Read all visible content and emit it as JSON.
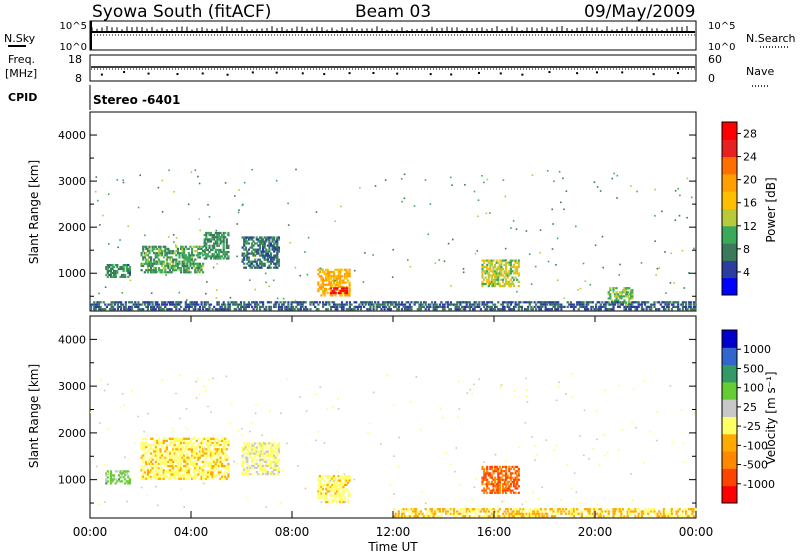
{
  "header": {
    "station": "Syowa South (fitACF)",
    "beam": "Beam 03",
    "date": "09/May/2009"
  },
  "top_panels": {
    "nsky_label": "N.Sky",
    "nsearch_label": "N.Search",
    "freq_label": "Freq.",
    "freq_unit": "[MHz]",
    "nave_label": "Nave",
    "cpid_label": "CPID",
    "cpid_value": "Stereo -6401",
    "noise_left_ticks": [
      "10^5",
      "10^0"
    ],
    "noise_right_ticks": [
      "10^5",
      "10^0"
    ],
    "freq_ticks": [
      "18",
      "8"
    ],
    "nave_ticks": [
      "60",
      "0"
    ]
  },
  "colors": {
    "power_scale": [
      "#0000ff",
      "#2b3ea0",
      "#3a7a5a",
      "#3aaa5a",
      "#b8c93a",
      "#ffbf00",
      "#ff9f00",
      "#ff6f00",
      "#e82020",
      "#ff0000"
    ],
    "velocity_scale": [
      "#ff0000",
      "#ff4400",
      "#ff8800",
      "#ffaa00",
      "#ffff66",
      "#c8c8c8",
      "#66cc33",
      "#339966",
      "#3366cc",
      "#0000cc"
    ],
    "ground_scatter": "#808080"
  },
  "chart_data": [
    {
      "type": "heatmap",
      "panel": "power",
      "ylabel": "Slant Range [km]",
      "ylim": [
        180,
        4500
      ],
      "yticks": [
        "1000",
        "2000",
        "3000",
        "4000"
      ],
      "xlim": [
        "00:00",
        "24:00"
      ],
      "colorbar_label": "Power [dB]",
      "colorbar_ticks": [
        "4",
        "8",
        "12",
        "16",
        "20",
        "24",
        "28"
      ],
      "clim": [
        0,
        30
      ],
      "scatter_regions": [
        {
          "t_start": 0.6,
          "t_end": 1.6,
          "r_min": 900,
          "r_max": 1200,
          "value": 8
        },
        {
          "t_start": 2.0,
          "t_end": 4.5,
          "r_min": 1000,
          "r_max": 1600,
          "value": 10
        },
        {
          "t_start": 4.5,
          "t_end": 5.5,
          "r_min": 1300,
          "r_max": 1900,
          "value": 9
        },
        {
          "t_start": 6.0,
          "t_end": 7.5,
          "r_min": 1100,
          "r_max": 1800,
          "value": 7
        },
        {
          "t_start": 9.0,
          "t_end": 10.3,
          "r_min": 500,
          "r_max": 1100,
          "value": 18
        },
        {
          "t_start": 9.5,
          "t_end": 10.2,
          "r_min": 550,
          "r_max": 700,
          "value": 28
        },
        {
          "t_start": 15.5,
          "t_end": 17.0,
          "r_min": 700,
          "r_max": 1300,
          "value": 14
        },
        {
          "t_start": 20.5,
          "t_end": 21.5,
          "r_min": 300,
          "r_max": 700,
          "value": 12
        },
        {
          "t_start": 0.0,
          "t_end": 24.0,
          "r_min": 200,
          "r_max": 400,
          "value": 6
        }
      ]
    },
    {
      "type": "heatmap",
      "panel": "velocity",
      "xlabel": "Time UT",
      "ylabel": "Slant Range [km]",
      "ylim": [
        180,
        4500
      ],
      "yticks": [
        "1000",
        "2000",
        "3000",
        "4000"
      ],
      "xticks": [
        "00:00",
        "04:00",
        "08:00",
        "12:00",
        "16:00",
        "20:00",
        "00:00"
      ],
      "colorbar_label": "Velocity [m s⁻¹]",
      "colorbar_ticks": [
        "1000",
        "500",
        "100",
        "25",
        "-25",
        "-100",
        "-500",
        "-1000"
      ],
      "clim": [
        -1000,
        1000
      ],
      "scatter_regions": [
        {
          "t_start": 0.6,
          "t_end": 1.6,
          "r_min": 900,
          "r_max": 1200,
          "value": 300
        },
        {
          "t_start": 2.0,
          "t_end": 5.5,
          "r_min": 1000,
          "r_max": 1900,
          "value": -150
        },
        {
          "t_start": 6.0,
          "t_end": 7.5,
          "r_min": 1100,
          "r_max": 1800,
          "value": -60
        },
        {
          "t_start": 9.0,
          "t_end": 10.3,
          "r_min": 500,
          "r_max": 1100,
          "value": -120
        },
        {
          "t_start": 15.5,
          "t_end": 17.0,
          "r_min": 700,
          "r_max": 1300,
          "value": -600
        },
        {
          "t_start": 12.0,
          "t_end": 24.0,
          "r_min": 200,
          "r_max": 400,
          "value": -200
        }
      ]
    }
  ]
}
